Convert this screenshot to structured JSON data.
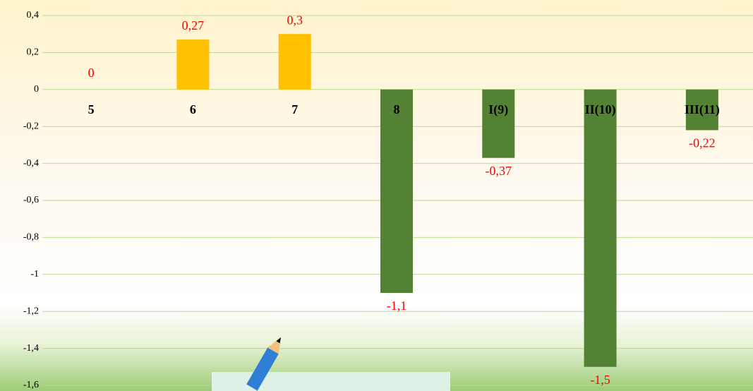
{
  "chart_data": {
    "type": "bar",
    "categories": [
      "5",
      "6",
      "7",
      "8",
      "I(9)",
      "II(10)",
      "III(11)"
    ],
    "values": [
      0,
      0.27,
      0.3,
      -1.1,
      -0.37,
      -1.5,
      -0.22
    ],
    "value_labels": [
      "0",
      "0,27",
      "0,3",
      "-1,1",
      "-0,37",
      "-1,5",
      "-0,22"
    ],
    "colors": [
      "#ffc000",
      "#ffc000",
      "#ffc000",
      "#548235",
      "#548235",
      "#548235",
      "#548235"
    ],
    "ylim": [
      -1.6,
      0.4
    ],
    "yticks": [
      {
        "value": 0.4,
        "label": "0,4"
      },
      {
        "value": 0.2,
        "label": "0,2"
      },
      0,
      {
        "value": -0.2,
        "label": "-0,2"
      },
      {
        "value": -0.4,
        "label": "-0,4"
      },
      {
        "value": -0.6,
        "label": "-0,6"
      },
      {
        "value": -0.8,
        "label": "-0,8"
      },
      -1,
      {
        "value": -1.2,
        "label": "-1,2"
      },
      {
        "value": -1.4,
        "label": "-1,4"
      },
      {
        "value": -1.6,
        "label": "-1,6"
      }
    ],
    "grid": true
  }
}
